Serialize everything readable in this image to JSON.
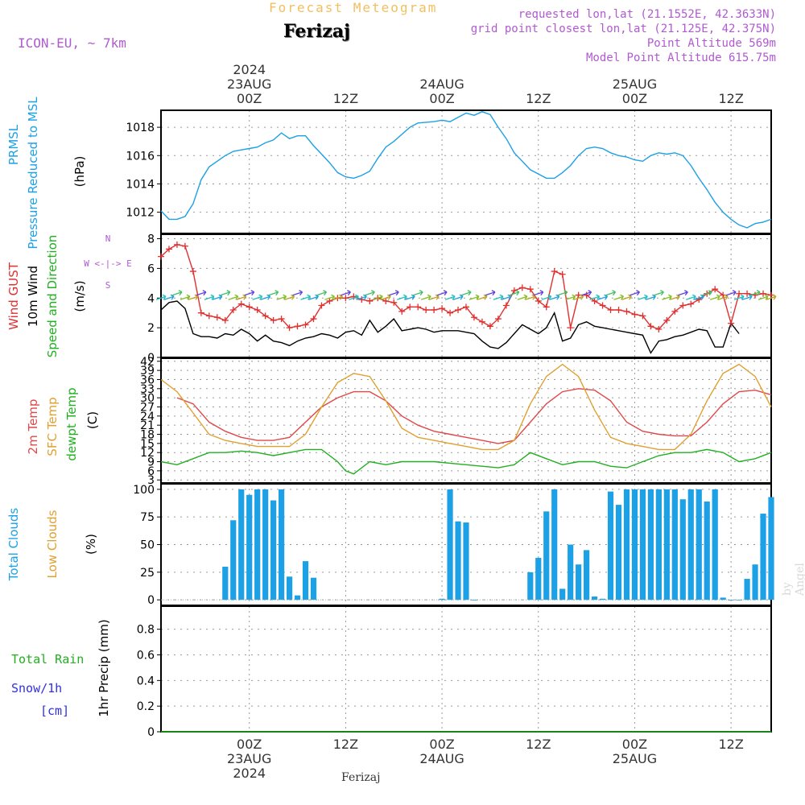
{
  "header": {
    "title": "Forecast Meteogram",
    "location": "Ferizaj",
    "model": "ICON-EU, ~ 7km",
    "requested": "requested lon,lat (21.1552E, 42.3633N)",
    "grid_point": "grid point closest lon,lat (21.125E, 42.375N)",
    "point_altitude": "Point Altitude 569m",
    "model_altitude": "Model Point Altitude 615.75m"
  },
  "credit": "by Angel",
  "footer_location": "Ferizaj",
  "colors": {
    "pressure": "#1ca0e6",
    "gust": "#e03030",
    "wind": "#000000",
    "temp2m": "#e04848",
    "sfc": "#e0a030",
    "dewpt": "#20b020",
    "clouds": "#1ca0e6",
    "rain": "#20b020",
    "snow": "#3030e0",
    "accent": "#b05ad0"
  },
  "time_axis": {
    "top_labels": [
      {
        "hour": 0,
        "lines": [
          "2024",
          "23AUG",
          "00Z"
        ]
      },
      {
        "hour": 12,
        "lines": [
          "12Z"
        ]
      },
      {
        "hour": 24,
        "lines": [
          "24AUG",
          "00Z"
        ]
      },
      {
        "hour": 36,
        "lines": [
          "12Z"
        ]
      },
      {
        "hour": 48,
        "lines": [
          "25AUG",
          "00Z"
        ]
      },
      {
        "hour": 60,
        "lines": [
          "12Z"
        ]
      }
    ],
    "bottom_labels": [
      {
        "hour": 0,
        "lines": [
          "00Z",
          "23AUG",
          "2024"
        ]
      },
      {
        "hour": 12,
        "lines": [
          "12Z"
        ]
      },
      {
        "hour": 24,
        "lines": [
          "00Z",
          "24AUG"
        ]
      },
      {
        "hour": 36,
        "lines": [
          "12Z"
        ]
      },
      {
        "hour": 48,
        "lines": [
          "00Z",
          "25AUG"
        ]
      },
      {
        "hour": 60,
        "lines": [
          "12Z"
        ]
      }
    ],
    "start_hour": -11,
    "end_hour": 65
  },
  "chart_data": [
    {
      "type": "line",
      "panel": "pressure",
      "labels": [
        "PRMSL",
        "Pressure Reduced to MSL"
      ],
      "unit": "(hPa)",
      "ylim": [
        1010.5,
        1019.2
      ],
      "yticks": [
        1012,
        1014,
        1016,
        1018
      ],
      "series": [
        {
          "name": "PRMSL",
          "color": "#1ca0e6",
          "x": [
            -11,
            -10,
            -9,
            -8,
            -7,
            -6,
            -5,
            -4,
            -3,
            -2,
            -1,
            0,
            1,
            2,
            3,
            4,
            5,
            6,
            7,
            8,
            9,
            10,
            11,
            12,
            13,
            14,
            15,
            16,
            17,
            18,
            19,
            20,
            21,
            22,
            23,
            24,
            25,
            26,
            27,
            28,
            29,
            30,
            31,
            32,
            33,
            34,
            35,
            36,
            37,
            38,
            39,
            40,
            41,
            42,
            43,
            44,
            45,
            46,
            47,
            48,
            49,
            50,
            51,
            52,
            53,
            54,
            55,
            56,
            57,
            58,
            59,
            60,
            61,
            62,
            63,
            64,
            65
          ],
          "values": [
            1012.1,
            1011.5,
            1011.5,
            1011.7,
            1012.6,
            1014.3,
            1015.2,
            1015.6,
            1016.0,
            1016.3,
            1016.4,
            1016.5,
            1016.6,
            1016.9,
            1017.1,
            1017.6,
            1017.2,
            1017.4,
            1017.4,
            1016.7,
            1016.1,
            1015.5,
            1014.8,
            1014.5,
            1014.4,
            1014.6,
            1014.9,
            1015.8,
            1016.6,
            1017.0,
            1017.5,
            1018.0,
            1018.3,
            1018.35,
            1018.4,
            1018.5,
            1018.4,
            1018.7,
            1019.0,
            1018.85,
            1019.1,
            1018.9,
            1018.0,
            1017.2,
            1016.2,
            1015.6,
            1015.0,
            1014.7,
            1014.4,
            1014.4,
            1014.8,
            1015.3,
            1016.0,
            1016.5,
            1016.6,
            1016.5,
            1016.2,
            1016.0,
            1015.9,
            1015.7,
            1015.6,
            1016.0,
            1016.2,
            1016.1,
            1016.2,
            1016.0,
            1015.3,
            1014.4,
            1013.6,
            1012.7,
            1012.0,
            1011.5,
            1011.1,
            1010.9,
            1011.2,
            1011.3,
            1011.5
          ]
        }
      ]
    },
    {
      "type": "line",
      "panel": "wind",
      "labels": [
        "Wind GUST",
        "10m Wind",
        "Speed and Direction"
      ],
      "unit": "(m/s)",
      "compass": [
        "N",
        "W <-|-> E",
        "S"
      ],
      "ylim": [
        0,
        8.3
      ],
      "yticks": [
        0,
        2,
        4,
        6,
        8
      ],
      "series": [
        {
          "name": "Wind GUST",
          "color": "#e03030",
          "marker": "+",
          "x": [
            -11,
            -10,
            -9,
            -8,
            -7,
            -6,
            -5,
            -4,
            -3,
            -2,
            -1,
            0,
            1,
            2,
            3,
            4,
            5,
            6,
            7,
            8,
            9,
            10,
            11,
            12,
            13,
            14,
            15,
            16,
            17,
            18,
            19,
            20,
            21,
            22,
            23,
            24,
            25,
            26,
            27,
            28,
            29,
            30,
            31,
            32,
            33,
            34,
            35,
            36,
            37,
            38,
            39,
            40,
            41,
            42,
            43,
            44,
            45,
            46,
            47,
            48,
            49,
            50,
            51,
            52,
            53,
            54,
            55,
            56,
            57,
            58,
            59,
            60,
            61,
            62,
            63,
            64,
            65
          ],
          "values": [
            6.8,
            7.3,
            7.6,
            7.5,
            5.8,
            3.0,
            2.8,
            2.7,
            2.5,
            3.2,
            3.6,
            3.4,
            3.2,
            2.8,
            2.5,
            2.6,
            2.0,
            2.1,
            2.2,
            2.6,
            3.5,
            3.8,
            4.0,
            4.0,
            4.1,
            3.9,
            3.8,
            4.0,
            3.8,
            3.7,
            3.1,
            3.4,
            3.4,
            3.2,
            3.2,
            3.3,
            3.0,
            3.2,
            3.4,
            2.7,
            2.4,
            2.1,
            2.6,
            3.5,
            4.5,
            4.7,
            4.6,
            3.8,
            3.4,
            5.8,
            5.6,
            2.0,
            4.2,
            4.2,
            3.8,
            3.5,
            3.2,
            3.2,
            3.1,
            2.9,
            2.8,
            2.1,
            1.9,
            2.5,
            3.1,
            3.5,
            3.6,
            3.9,
            4.3,
            4.6,
            4.2,
            2.3,
            4.3,
            4.3,
            4.2,
            4.3,
            4.2
          ]
        },
        {
          "name": "10m Wind",
          "color": "#000000",
          "x": [
            -11,
            -10,
            -9,
            -8,
            -7,
            -6,
            -5,
            -4,
            -3,
            -2,
            -1,
            0,
            1,
            2,
            3,
            4,
            5,
            6,
            7,
            8,
            9,
            10,
            11,
            12,
            13,
            14,
            15,
            16,
            17,
            18,
            19,
            20,
            21,
            22,
            23,
            24,
            25,
            26,
            27,
            28,
            29,
            30,
            31,
            32,
            33,
            34,
            35,
            36,
            37,
            38,
            39,
            40,
            41,
            42,
            43,
            44,
            45,
            46,
            47,
            48,
            49,
            50,
            51,
            52,
            53,
            54,
            55,
            56,
            57,
            58,
            59,
            60,
            61,
            62,
            63,
            64,
            65
          ],
          "values": [
            3.2,
            3.7,
            3.8,
            3.3,
            1.6,
            1.4,
            1.4,
            1.3,
            1.6,
            1.5,
            1.9,
            1.6,
            1.1,
            1.5,
            1.1,
            1.0,
            0.8,
            1.1,
            1.3,
            1.4,
            1.6,
            1.5,
            1.3,
            1.7,
            1.8,
            1.5,
            2.5,
            1.7,
            2.1,
            2.6,
            1.8,
            1.9,
            2.0,
            1.9,
            1.7,
            1.8,
            1.8,
            1.8,
            1.7,
            1.6,
            1.1,
            0.7,
            0.6,
            1.0,
            1.6,
            2.2,
            1.9,
            1.6,
            2.0,
            3.0,
            1.1,
            1.3,
            2.2,
            2.4,
            2.1,
            2.0,
            1.9,
            1.8,
            1.7,
            1.6,
            1.5,
            0.3,
            1.1,
            1.2,
            1.4,
            1.5,
            1.7,
            1.9,
            1.8,
            0.7,
            0.7,
            2.3,
            1.6,
            null,
            null,
            null,
            null
          ]
        }
      ]
    },
    {
      "type": "line",
      "panel": "temperature",
      "labels": [
        "2m Temp",
        "SFC Temp",
        "dewpt Temp"
      ],
      "unit": "(C)",
      "ylim": [
        2,
        43
      ],
      "yticks": [
        3,
        6,
        9,
        12,
        15,
        18,
        21,
        24,
        27,
        30,
        33,
        36,
        39,
        42
      ],
      "series": [
        {
          "name": "2m Temp",
          "color": "#e04848",
          "x": [
            -9,
            -7,
            -5,
            -3,
            -1,
            1,
            3,
            5,
            7,
            9,
            11,
            13,
            15,
            17,
            19,
            21,
            23,
            25,
            27,
            29,
            31,
            33,
            35,
            37,
            39,
            41,
            43,
            45,
            47,
            49,
            51,
            53,
            55,
            57,
            59,
            61,
            63,
            65
          ],
          "values": [
            30,
            28,
            22,
            19,
            17,
            16,
            16,
            17,
            22,
            27,
            30,
            32,
            32,
            29,
            24,
            21,
            19,
            18,
            17,
            16,
            15,
            16,
            22,
            28,
            32,
            33,
            32.5,
            29,
            22,
            19,
            18,
            17.5,
            17.5,
            22,
            28,
            32,
            32.5,
            31
          ]
        },
        {
          "name": "SFC Temp",
          "color": "#e0a030",
          "x": [
            -11,
            -9,
            -7,
            -5,
            -3,
            -1,
            1,
            3,
            5,
            7,
            9,
            11,
            13,
            15,
            17,
            19,
            21,
            23,
            25,
            27,
            29,
            31,
            33,
            35,
            37,
            39,
            41,
            43,
            45,
            47,
            49,
            51,
            53,
            55,
            57,
            59,
            61,
            63,
            65
          ],
          "values": [
            36,
            32,
            25,
            18,
            16,
            15,
            14,
            14,
            14,
            18,
            27,
            35,
            38,
            37,
            29,
            20,
            17,
            16,
            15,
            14,
            13,
            13,
            16,
            28,
            37,
            41,
            37,
            26,
            17,
            15,
            14,
            13,
            13,
            18,
            29,
            38,
            41,
            37,
            27
          ]
        },
        {
          "name": "dewpt Temp",
          "color": "#20b020",
          "x": [
            -11,
            -9,
            -7,
            -5,
            -3,
            -1,
            1,
            3,
            5,
            7,
            9,
            11,
            12,
            13,
            15,
            17,
            19,
            21,
            23,
            25,
            27,
            29,
            31,
            33,
            35,
            37,
            39,
            41,
            43,
            45,
            47,
            49,
            51,
            53,
            55,
            57,
            59,
            61,
            63,
            65
          ],
          "values": [
            9,
            8,
            10,
            12,
            12,
            12.5,
            12,
            11,
            12,
            13,
            13,
            9,
            6,
            5,
            9,
            8,
            9,
            9,
            9,
            8.5,
            8,
            7.5,
            7,
            8,
            12,
            10,
            8,
            9,
            9,
            7.5,
            7,
            9,
            11,
            12,
            12,
            13,
            12,
            9,
            10,
            12
          ]
        }
      ]
    },
    {
      "type": "bar",
      "panel": "clouds",
      "labels": [
        "Total Clouds",
        "Low Clouds"
      ],
      "unit": "(%)",
      "ylim": [
        -5,
        105
      ],
      "yticks": [
        0,
        25,
        50,
        75,
        100
      ],
      "series": [
        {
          "name": "Total Clouds",
          "color": "#1ca0e6",
          "x": [
            -3,
            -2,
            -1,
            0,
            1,
            2,
            3,
            4,
            5,
            6,
            7,
            8,
            24,
            25,
            26,
            27,
            28,
            35,
            36,
            37,
            38,
            39,
            40,
            41,
            42,
            43,
            44,
            45,
            46,
            47,
            48,
            49,
            50,
            51,
            52,
            53,
            54,
            55,
            56,
            57,
            58,
            59,
            60,
            61,
            62,
            63,
            64,
            65
          ],
          "values": [
            30,
            72,
            100,
            95,
            100,
            100,
            90,
            100,
            21,
            4,
            35,
            20,
            1,
            100,
            71,
            70,
            0,
            25,
            38,
            80,
            100,
            10,
            50,
            32,
            45,
            3,
            1,
            98,
            86,
            100,
            100,
            100,
            100,
            100,
            100,
            100,
            91,
            100,
            100,
            89,
            100,
            2,
            0,
            0,
            19,
            32,
            78,
            93
          ]
        }
      ]
    },
    {
      "type": "line",
      "panel": "precip",
      "labels": [
        "Total Rain",
        "Snow/1h",
        "[cm]"
      ],
      "unit": "1hr Precip (mm)",
      "ylim": [
        0,
        0.98
      ],
      "yticks": [
        0,
        0.2,
        0.4,
        0.6,
        0.8
      ],
      "series": [
        {
          "name": "Total Rain",
          "color": "#20b020",
          "x": [
            -11,
            65
          ],
          "values": [
            0,
            0
          ]
        }
      ]
    }
  ]
}
